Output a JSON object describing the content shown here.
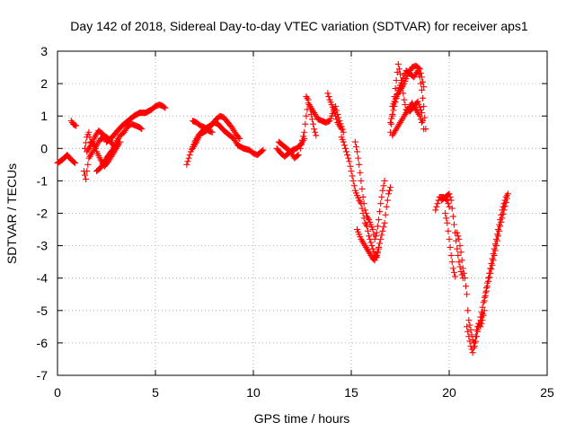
{
  "chart_data": {
    "type": "scatter",
    "title": "Day 142 of 2018, Sidereal Day-to-day VTEC variation (SDTVAR) for receiver aps1",
    "xlabel": "GPS time / hours",
    "ylabel": "SDTVAR / TECUs",
    "xlim": [
      0,
      25
    ],
    "ylim": [
      -7,
      3
    ],
    "xticks": [
      "0",
      "5",
      "10",
      "15",
      "20",
      "25"
    ],
    "yticks": [
      "3",
      "2",
      "1",
      "0",
      "-1",
      "-2",
      "-3",
      "-4",
      "-5",
      "-6",
      "-7"
    ],
    "grid": true,
    "marker": "+",
    "color": "#ff0000",
    "segments": [
      [
        [
          0.0,
          -0.45
        ],
        [
          0.25,
          -0.35
        ],
        [
          0.5,
          -0.2
        ],
        [
          0.7,
          -0.35
        ],
        [
          0.9,
          -0.45
        ]
      ],
      [
        [
          0.7,
          0.85
        ],
        [
          0.8,
          0.75
        ],
        [
          0.95,
          0.7
        ]
      ],
      [
        [
          1.35,
          -0.7
        ],
        [
          1.45,
          -0.95
        ],
        [
          1.5,
          -0.7
        ],
        [
          1.6,
          -0.3
        ],
        [
          1.8,
          -0.1
        ],
        [
          2.0,
          0.1
        ],
        [
          2.2,
          0.3
        ],
        [
          2.5,
          0.35
        ],
        [
          2.7,
          0.25
        ],
        [
          2.9,
          0.05
        ]
      ],
      [
        [
          1.4,
          0.0
        ],
        [
          1.5,
          0.35
        ],
        [
          1.6,
          0.5
        ],
        [
          1.7,
          0.2
        ],
        [
          1.9,
          0.1
        ],
        [
          2.0,
          -0.1
        ],
        [
          2.2,
          -0.35
        ],
        [
          2.4,
          -0.55
        ],
        [
          2.6,
          -0.4
        ],
        [
          2.8,
          -0.2
        ],
        [
          3.0,
          0.0
        ],
        [
          3.2,
          0.2
        ]
      ],
      [
        [
          1.5,
          -0.1
        ],
        [
          1.7,
          0.1
        ],
        [
          1.9,
          0.35
        ],
        [
          2.1,
          0.55
        ],
        [
          2.3,
          0.45
        ],
        [
          2.5,
          0.3
        ],
        [
          2.7,
          0.2
        ]
      ],
      [
        [
          2.0,
          -0.7
        ],
        [
          2.2,
          -0.6
        ],
        [
          2.5,
          -0.3
        ],
        [
          2.8,
          -0.05
        ],
        [
          3.0,
          0.2
        ],
        [
          3.2,
          0.4
        ],
        [
          3.4,
          0.5
        ],
        [
          3.6,
          0.7
        ],
        [
          3.8,
          0.75
        ],
        [
          4.0,
          0.7
        ],
        [
          4.2,
          0.65
        ],
        [
          4.3,
          0.6
        ]
      ],
      [
        [
          2.5,
          0.2
        ],
        [
          2.8,
          0.35
        ],
        [
          3.0,
          0.5
        ],
        [
          3.3,
          0.7
        ],
        [
          3.6,
          0.85
        ],
        [
          3.9,
          1.0
        ],
        [
          4.2,
          1.1
        ],
        [
          4.5,
          1.1
        ],
        [
          4.8,
          1.2
        ],
        [
          5.0,
          1.3
        ],
        [
          5.2,
          1.35
        ],
        [
          5.4,
          1.3
        ],
        [
          5.5,
          1.25
        ]
      ],
      [
        [
          6.6,
          -0.5
        ],
        [
          6.7,
          -0.3
        ],
        [
          6.8,
          -0.1
        ],
        [
          7.0,
          0.2
        ],
        [
          7.2,
          0.4
        ],
        [
          7.5,
          0.6
        ],
        [
          7.8,
          0.7
        ],
        [
          8.0,
          0.8
        ],
        [
          8.2,
          0.75
        ],
        [
          8.5,
          0.55
        ],
        [
          8.8,
          0.4
        ],
        [
          9.0,
          0.3
        ],
        [
          9.2,
          0.1
        ],
        [
          9.5,
          0.0
        ],
        [
          9.8,
          -0.05
        ],
        [
          10.0,
          -0.15
        ],
        [
          10.2,
          -0.2
        ],
        [
          10.4,
          -0.1
        ],
        [
          10.5,
          -0.05
        ]
      ],
      [
        [
          6.9,
          0.0
        ],
        [
          7.1,
          0.2
        ],
        [
          7.3,
          0.45
        ],
        [
          7.6,
          0.55
        ],
        [
          7.9,
          0.75
        ],
        [
          8.1,
          0.9
        ],
        [
          8.3,
          1.0
        ],
        [
          8.5,
          0.95
        ],
        [
          8.7,
          0.8
        ],
        [
          8.9,
          0.65
        ],
        [
          9.1,
          0.45
        ],
        [
          9.3,
          0.3
        ]
      ],
      [
        [
          6.9,
          0.85
        ],
        [
          7.1,
          0.8
        ],
        [
          7.3,
          0.7
        ],
        [
          7.5,
          0.65
        ],
        [
          7.7,
          0.55
        ],
        [
          7.9,
          0.5
        ]
      ],
      [
        [
          11.2,
          0.0
        ],
        [
          11.4,
          -0.15
        ],
        [
          11.6,
          -0.25
        ],
        [
          11.8,
          -0.15
        ],
        [
          12.0,
          -0.05
        ],
        [
          12.2,
          0.0
        ],
        [
          12.4,
          0.1
        ],
        [
          12.6,
          0.3
        ]
      ],
      [
        [
          11.3,
          0.2
        ],
        [
          11.5,
          0.1
        ],
        [
          11.7,
          0.0
        ],
        [
          11.9,
          -0.1
        ],
        [
          12.1,
          -0.3
        ],
        [
          12.3,
          -0.2
        ]
      ],
      [
        [
          12.4,
          0.0
        ],
        [
          12.6,
          0.5
        ],
        [
          12.7,
          1.0
        ],
        [
          12.8,
          1.4
        ],
        [
          12.9,
          1.3
        ],
        [
          13.1,
          1.1
        ],
        [
          13.3,
          0.9
        ],
        [
          13.5,
          0.85
        ],
        [
          13.7,
          0.8
        ],
        [
          13.9,
          0.85
        ],
        [
          14.0,
          1.0
        ],
        [
          14.2,
          1.3
        ],
        [
          14.3,
          1.05
        ],
        [
          14.4,
          0.85
        ],
        [
          14.6,
          0.5
        ]
      ],
      [
        [
          12.7,
          1.6
        ],
        [
          12.8,
          1.5
        ],
        [
          12.9,
          1.2
        ],
        [
          13.0,
          0.9
        ],
        [
          13.1,
          0.6
        ],
        [
          13.2,
          0.4
        ]
      ],
      [
        [
          13.8,
          1.7
        ],
        [
          13.9,
          1.5
        ],
        [
          14.1,
          1.2
        ],
        [
          14.3,
          0.8
        ],
        [
          14.5,
          0.6
        ]
      ],
      [
        [
          14.5,
          0.35
        ],
        [
          14.6,
          0.2
        ],
        [
          14.7,
          0.0
        ],
        [
          14.8,
          -0.2
        ],
        [
          14.9,
          -0.4
        ],
        [
          15.0,
          -0.7
        ],
        [
          15.1,
          -1.0
        ],
        [
          15.2,
          -1.3
        ],
        [
          15.4,
          -1.6
        ],
        [
          15.5,
          -1.7
        ],
        [
          15.6,
          -2.0
        ],
        [
          15.7,
          -2.3
        ],
        [
          15.8,
          -2.4
        ],
        [
          15.9,
          -2.7
        ],
        [
          16.0,
          -2.9
        ],
        [
          16.1,
          -3.1
        ],
        [
          16.2,
          -3.3
        ],
        [
          16.3,
          -3.35
        ],
        [
          16.4,
          -3.1
        ]
      ],
      [
        [
          15.2,
          0.2
        ],
        [
          15.3,
          -0.1
        ],
        [
          15.4,
          -0.5
        ],
        [
          15.5,
          -1.0
        ],
        [
          15.6,
          -1.5
        ],
        [
          15.7,
          -1.9
        ],
        [
          15.8,
          -2.1
        ],
        [
          15.9,
          -2.2
        ],
        [
          16.0,
          -2.35
        ],
        [
          16.1,
          -2.5
        ],
        [
          16.2,
          -2.8
        ],
        [
          16.3,
          -2.6
        ],
        [
          16.4,
          -2.2
        ],
        [
          16.5,
          -1.7
        ],
        [
          16.6,
          -1.3
        ],
        [
          16.7,
          -1.0
        ]
      ],
      [
        [
          15.3,
          -2.5
        ],
        [
          15.5,
          -2.8
        ],
        [
          15.7,
          -3.0
        ],
        [
          15.9,
          -3.2
        ],
        [
          16.1,
          -3.4
        ],
        [
          16.2,
          -3.45
        ],
        [
          16.3,
          -3.3
        ],
        [
          16.5,
          -2.8
        ],
        [
          16.7,
          -2.3
        ],
        [
          16.8,
          -1.8
        ],
        [
          16.9,
          -1.4
        ],
        [
          17.0,
          -1.2
        ]
      ],
      [
        [
          17.0,
          0.5
        ],
        [
          17.1,
          1.0
        ],
        [
          17.2,
          1.6
        ],
        [
          17.3,
          2.1
        ],
        [
          17.4,
          2.6
        ],
        [
          17.5,
          2.3
        ],
        [
          17.6,
          1.9
        ],
        [
          17.7,
          1.5
        ],
        [
          17.8,
          1.2
        ],
        [
          18.0,
          1.15
        ],
        [
          18.2,
          1.3
        ],
        [
          18.4,
          1.45
        ],
        [
          18.6,
          1.1
        ],
        [
          18.7,
          0.6
        ]
      ],
      [
        [
          17.0,
          0.8
        ],
        [
          17.2,
          1.3
        ],
        [
          17.4,
          1.8
        ],
        [
          17.6,
          2.1
        ],
        [
          17.8,
          2.4
        ],
        [
          18.0,
          2.3
        ],
        [
          18.2,
          2.2
        ],
        [
          18.4,
          2.4
        ],
        [
          18.5,
          2.2
        ],
        [
          18.6,
          1.8
        ],
        [
          18.7,
          1.3
        ],
        [
          18.8,
          0.6
        ]
      ],
      [
        [
          17.1,
          1.3
        ],
        [
          17.3,
          1.6
        ],
        [
          17.5,
          1.8
        ],
        [
          17.7,
          2.0
        ],
        [
          17.9,
          2.3
        ],
        [
          18.1,
          2.5
        ],
        [
          18.3,
          2.55
        ],
        [
          18.5,
          2.45
        ],
        [
          18.6,
          2.2
        ],
        [
          18.7,
          1.9
        ]
      ],
      [
        [
          17.1,
          0.4
        ],
        [
          17.3,
          0.6
        ],
        [
          17.5,
          0.8
        ],
        [
          17.7,
          1.0
        ],
        [
          17.9,
          1.2
        ],
        [
          18.1,
          1.4
        ],
        [
          18.3,
          1.2
        ],
        [
          18.5,
          1.0
        ],
        [
          18.6,
          0.8
        ]
      ],
      [
        [
          19.3,
          -1.9
        ],
        [
          19.4,
          -1.7
        ],
        [
          19.5,
          -1.5
        ],
        [
          19.7,
          -1.5
        ],
        [
          19.9,
          -1.6
        ],
        [
          20.0,
          -1.8
        ]
      ],
      [
        [
          19.6,
          -1.6
        ],
        [
          19.8,
          -1.5
        ],
        [
          20.0,
          -1.4
        ],
        [
          20.1,
          -1.6
        ],
        [
          20.2,
          -2.1
        ],
        [
          20.3,
          -2.6
        ],
        [
          20.4,
          -3.1
        ],
        [
          20.5,
          -3.5
        ],
        [
          20.6,
          -3.8
        ],
        [
          20.7,
          -4.0
        ]
      ],
      [
        [
          19.8,
          -2.0
        ],
        [
          19.9,
          -2.3
        ],
        [
          20.0,
          -2.8
        ],
        [
          20.1,
          -3.3
        ],
        [
          20.2,
          -3.7
        ],
        [
          20.3,
          -3.95
        ]
      ],
      [
        [
          20.4,
          -2.6
        ],
        [
          20.5,
          -2.8
        ],
        [
          20.6,
          -3.2
        ],
        [
          20.7,
          -3.7
        ],
        [
          20.8,
          -4.0
        ],
        [
          20.9,
          -4.5
        ],
        [
          20.95,
          -5.0
        ],
        [
          21.0,
          -5.3
        ],
        [
          21.1,
          -5.6
        ],
        [
          21.2,
          -5.9
        ],
        [
          21.3,
          -6.1
        ],
        [
          21.4,
          -5.8
        ],
        [
          21.5,
          -5.5
        ],
        [
          21.6,
          -5.3
        ],
        [
          21.7,
          -5.1
        ]
      ],
      [
        [
          20.9,
          -5.5
        ],
        [
          21.0,
          -5.8
        ],
        [
          21.1,
          -6.1
        ],
        [
          21.2,
          -6.3
        ],
        [
          21.3,
          -6.0
        ],
        [
          21.4,
          -5.6
        ],
        [
          21.5,
          -5.4
        ],
        [
          21.6,
          -5.5
        ],
        [
          21.7,
          -5.3
        ],
        [
          21.8,
          -5.0
        ]
      ],
      [
        [
          21.6,
          -5.2
        ],
        [
          21.7,
          -4.9
        ],
        [
          21.8,
          -4.6
        ],
        [
          21.9,
          -4.3
        ],
        [
          22.0,
          -4.0
        ],
        [
          22.1,
          -3.7
        ],
        [
          22.2,
          -3.4
        ],
        [
          22.3,
          -3.1
        ],
        [
          22.4,
          -2.8
        ],
        [
          22.5,
          -2.5
        ],
        [
          22.6,
          -2.2
        ],
        [
          22.7,
          -1.9
        ],
        [
          22.8,
          -1.7
        ],
        [
          22.9,
          -1.5
        ],
        [
          23.0,
          -1.4
        ]
      ],
      [
        [
          21.8,
          -4.7
        ],
        [
          21.9,
          -4.4
        ],
        [
          22.0,
          -4.1
        ],
        [
          22.2,
          -3.6
        ],
        [
          22.4,
          -3.0
        ],
        [
          22.6,
          -2.4
        ],
        [
          22.8,
          -1.9
        ],
        [
          22.95,
          -1.55
        ]
      ]
    ]
  }
}
